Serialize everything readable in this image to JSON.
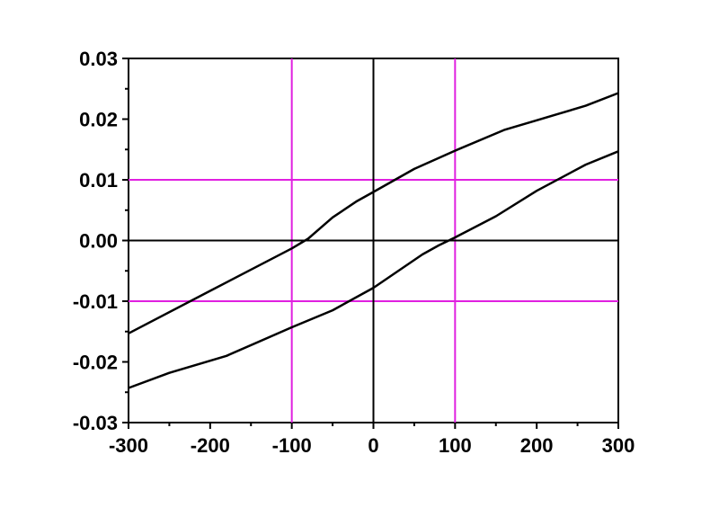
{
  "chart_data": {
    "type": "line",
    "title": "",
    "xlabel": "",
    "ylabel": "",
    "xlim": [
      -300,
      300
    ],
    "ylim": [
      -0.03,
      0.03
    ],
    "x_ticks": [
      -300,
      -200,
      -100,
      0,
      100,
      200,
      300
    ],
    "x_tick_labels": [
      "-300",
      "-200",
      "-100",
      "0",
      "100",
      "200",
      "300"
    ],
    "y_ticks": [
      0.03,
      0.02,
      0.01,
      0.0,
      -0.01,
      -0.02,
      -0.03
    ],
    "y_tick_labels": [
      "0.03",
      "0.02",
      "0.01",
      "0.00",
      "-0.01",
      "-0.02",
      "-0.03"
    ],
    "reference_lines": {
      "color": "#e020e0",
      "vertical_x": [
        -100,
        100
      ],
      "horizontal_y": [
        0.01,
        -0.01
      ],
      "axis_lines": {
        "x": 0,
        "y": 0,
        "color": "#000000"
      }
    },
    "grid": false,
    "legend": "none",
    "series": [
      {
        "color": "#000000",
        "x": [
          -300,
          -200,
          -100,
          -80,
          -50,
          -20,
          0,
          50,
          100,
          160,
          200,
          260,
          300
        ],
        "y": [
          -0.0153,
          -0.0083,
          -0.0013,
          0.0003,
          0.0038,
          0.0065,
          0.008,
          0.0118,
          0.0148,
          0.0182,
          0.0198,
          0.0222,
          0.0243
        ]
      },
      {
        "color": "#000000",
        "x": [
          -300,
          -250,
          -180,
          -100,
          -50,
          0,
          60,
          80,
          100,
          150,
          200,
          260,
          300
        ],
        "y": [
          -0.0243,
          -0.0218,
          -0.019,
          -0.0143,
          -0.0115,
          -0.0078,
          -0.0023,
          -0.0008,
          0.0005,
          0.004,
          0.0082,
          0.0125,
          0.0147
        ]
      }
    ]
  }
}
